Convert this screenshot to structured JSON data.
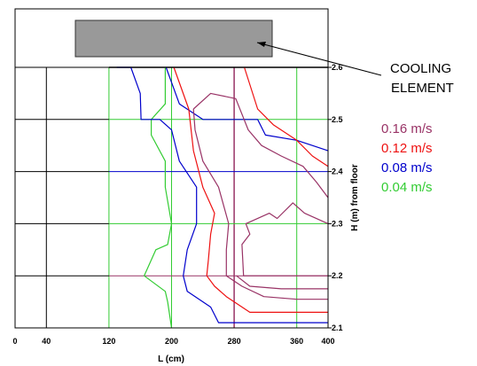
{
  "chart_data": {
    "type": "line",
    "title": "",
    "xlabel": "L (cm)",
    "ylabel": "H (m) from floor",
    "xlim": [
      0,
      400
    ],
    "ylim": [
      2.1,
      2.6
    ],
    "xticks": [
      "0",
      "40",
      "120",
      "200",
      "280",
      "360",
      "400"
    ],
    "xtick_values": [
      0,
      40,
      120,
      200,
      280,
      360,
      400
    ],
    "yticks": [
      "2.1",
      "2.2",
      "2.3",
      "2.4",
      "2.5",
      "2.6"
    ],
    "ytick_values": [
      2.1,
      2.2,
      2.3,
      2.4,
      2.5,
      2.6
    ],
    "annotation": {
      "line1": "COOLING",
      "line2": "ELEMENT"
    },
    "series": [
      {
        "name": "0.04 m/s",
        "color": "#33cc33",
        "values": [
          [
            192,
            2.6
          ],
          [
            192,
            2.53
          ],
          [
            174,
            2.5
          ],
          [
            174,
            2.47
          ],
          [
            192,
            2.42
          ],
          [
            192,
            2.37
          ],
          [
            200,
            2.3
          ],
          [
            195,
            2.26
          ],
          [
            180,
            2.25
          ],
          [
            165,
            2.2
          ],
          [
            192,
            2.17
          ],
          [
            195,
            2.15
          ],
          [
            200,
            2.1
          ]
        ]
      },
      {
        "name": "0.08 m/s",
        "color": "#0000cc",
        "values": [
          [
            130,
            2.6
          ],
          [
            148,
            2.6
          ],
          [
            160,
            2.55
          ],
          [
            161,
            2.5
          ],
          [
            185,
            2.5
          ],
          [
            200,
            2.48
          ],
          [
            210,
            2.42
          ],
          [
            232,
            2.37
          ],
          [
            232,
            2.3
          ],
          [
            220,
            2.25
          ],
          [
            215,
            2.2
          ],
          [
            220,
            2.17
          ],
          [
            250,
            2.14
          ],
          [
            260,
            2.11
          ],
          [
            400,
            2.11
          ]
        ]
      },
      {
        "name": "0.08 m/s",
        "color": "#0000cc",
        "values": [
          [
            193,
            2.6
          ],
          [
            210,
            2.53
          ],
          [
            240,
            2.5
          ],
          [
            310,
            2.5
          ],
          [
            320,
            2.47
          ],
          [
            360,
            2.46
          ],
          [
            400,
            2.44
          ]
        ]
      },
      {
        "name": "0.12 m/s",
        "color": "#ee1111",
        "values": [
          [
            203,
            2.6
          ],
          [
            222,
            2.52
          ],
          [
            228,
            2.44
          ],
          [
            240,
            2.37
          ],
          [
            255,
            2.32
          ],
          [
            250,
            2.28
          ],
          [
            247,
            2.23
          ],
          [
            245,
            2.2
          ],
          [
            255,
            2.18
          ],
          [
            270,
            2.16
          ],
          [
            300,
            2.13
          ],
          [
            400,
            2.13
          ]
        ]
      },
      {
        "name": "0.12 m/s",
        "color": "#ee1111",
        "values": [
          [
            293,
            2.6
          ],
          [
            310,
            2.52
          ],
          [
            330,
            2.49
          ],
          [
            360,
            2.46
          ],
          [
            380,
            2.43
          ],
          [
            400,
            2.41
          ]
        ]
      },
      {
        "name": "0.16 m/s",
        "color": "#993366",
        "values": [
          [
            228,
            2.52
          ],
          [
            250,
            2.55
          ],
          [
            282,
            2.54
          ],
          [
            298,
            2.48
          ],
          [
            315,
            2.45
          ],
          [
            340,
            2.43
          ],
          [
            368,
            2.41
          ],
          [
            385,
            2.38
          ],
          [
            400,
            2.35
          ]
        ]
      },
      {
        "name": "0.16 m/s",
        "color": "#993366",
        "values": [
          [
            228,
            2.52
          ],
          [
            230,
            2.48
          ],
          [
            240,
            2.42
          ],
          [
            260,
            2.37
          ],
          [
            273,
            2.3
          ],
          [
            270,
            2.25
          ],
          [
            270,
            2.2
          ],
          [
            290,
            2.18
          ],
          [
            318,
            2.16
          ],
          [
            360,
            2.155
          ],
          [
            400,
            2.155
          ]
        ]
      },
      {
        "name": "0.16 m/s",
        "color": "#993366",
        "values": [
          [
            400,
            2.3
          ],
          [
            370,
            2.32
          ],
          [
            355,
            2.34
          ],
          [
            335,
            2.31
          ],
          [
            325,
            2.32
          ],
          [
            295,
            2.3
          ],
          [
            300,
            2.28
          ],
          [
            290,
            2.26
          ],
          [
            292,
            2.2
          ],
          [
            400,
            2.2
          ]
        ]
      },
      {
        "name": "0.16 m/s",
        "color": "#993366",
        "values": [
          [
            283,
            2.2
          ],
          [
            300,
            2.18
          ],
          [
            340,
            2.175
          ],
          [
            400,
            2.175
          ]
        ]
      }
    ],
    "legend": [
      {
        "label": "0.16 m/s",
        "color": "#993366"
      },
      {
        "label": "0.12 m/s",
        "color": "#ee1111"
      },
      {
        "label": "0.08 m/s",
        "color": "#0000cc"
      },
      {
        "label": "0.04 m/s",
        "color": "#33cc33"
      }
    ],
    "grid": true,
    "legend_position": "right"
  }
}
